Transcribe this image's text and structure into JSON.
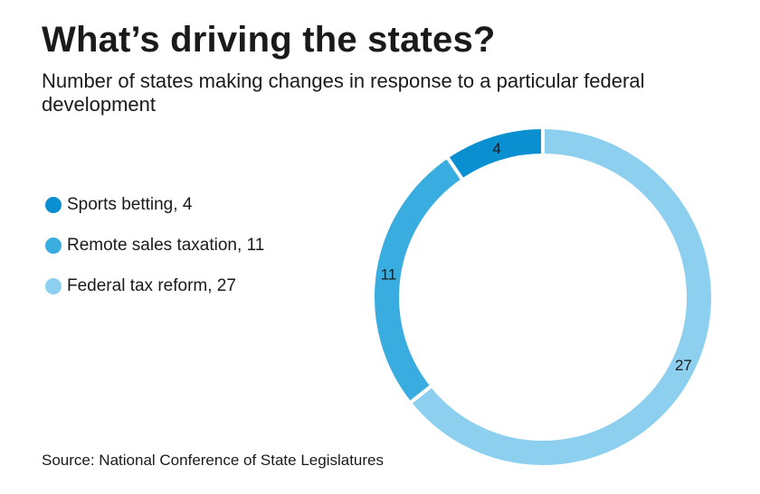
{
  "chart_data": {
    "type": "pie",
    "style": "donut",
    "title": "What’s driving the states?",
    "subtitle": "Number of states making changes in response to a particular federal development",
    "categories": [
      "Sports betting",
      "Remote sales taxation",
      "Federal tax reform"
    ],
    "values": [
      4,
      11,
      27
    ],
    "colors": [
      "#0a8fd0",
      "#3aade0",
      "#8dcfee"
    ],
    "legend_placement": "left",
    "source": "Source: National Conference of State Legislatures"
  }
}
